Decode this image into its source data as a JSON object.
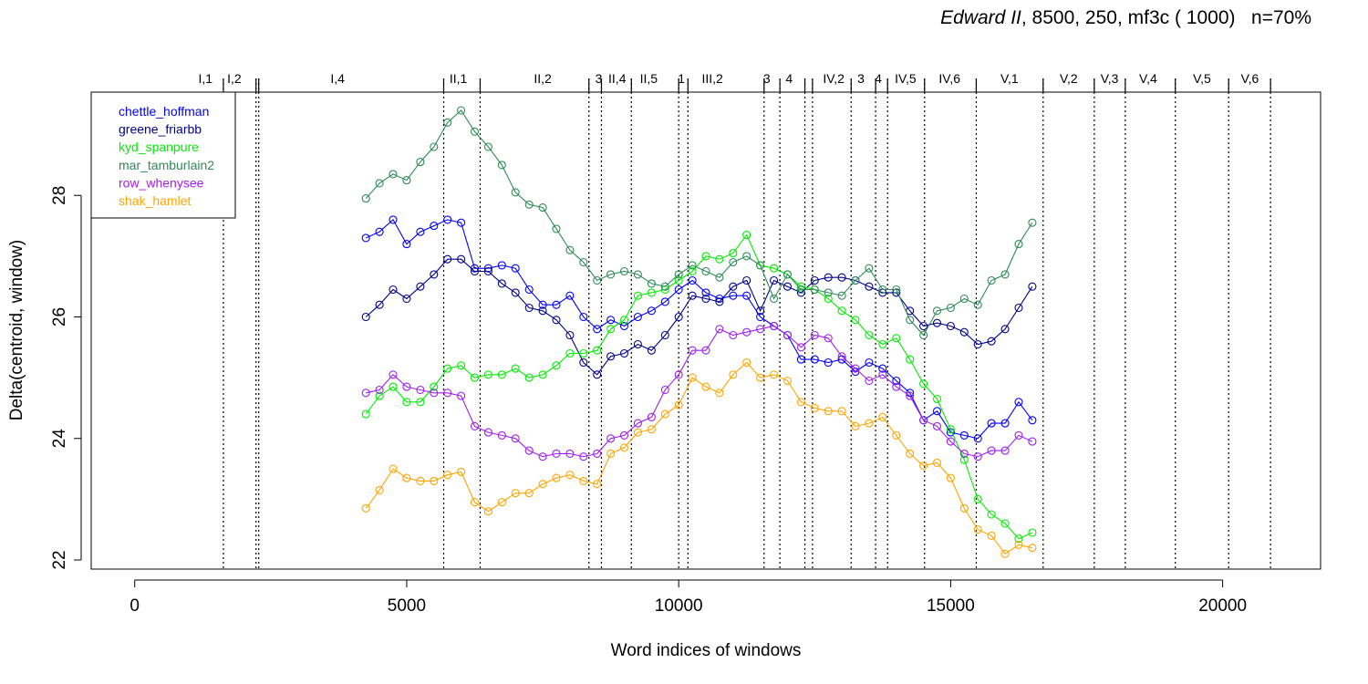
{
  "chart_data": {
    "type": "line",
    "title_italic": "Edward II",
    "title_rest": ", 8500, 250, mf3c ( 1000)   n=70%",
    "xlabel": "Word indices of windows",
    "ylabel": "Delta(centroid, window)",
    "xlim": [
      -800,
      21800
    ],
    "ylim": [
      21.85,
      29.7
    ],
    "x_ticks": [
      0,
      5000,
      10000,
      15000,
      20000
    ],
    "x_tick_labels": [
      "0",
      "5000",
      "10000",
      "15000",
      "20000"
    ],
    "y_ticks": [
      22,
      24,
      26,
      28
    ],
    "y_tick_labels": [
      "22",
      "24",
      "26",
      "28"
    ],
    "grid": false,
    "legend_position": "top-left",
    "scene_boundaries": [
      1630,
      2230,
      2280,
      5680,
      6350,
      8350,
      8580,
      9130,
      10000,
      10170,
      11570,
      11860,
      12320,
      12460,
      13170,
      13620,
      13840,
      14520,
      15470,
      16700,
      17640,
      18210,
      19130,
      20110,
      20880
    ],
    "scenes": [
      {
        "label": "I,1",
        "x": 1300
      },
      {
        "label": "I,2",
        "x": 1830
      },
      {
        "label": "I,4",
        "x": 3730
      },
      {
        "label": "II,1",
        "x": 5950
      },
      {
        "label": "II,2",
        "x": 7500
      },
      {
        "label": "3",
        "x": 8530
      },
      {
        "label": "II,4",
        "x": 8870
      },
      {
        "label": "II,5",
        "x": 9450
      },
      {
        "label": "1",
        "x": 10050
      },
      {
        "label": "III,2",
        "x": 10620
      },
      {
        "label": "3",
        "x": 11620
      },
      {
        "label": "4",
        "x": 12030
      },
      {
        "label": "IV,2",
        "x": 12850
      },
      {
        "label": "3",
        "x": 13350
      },
      {
        "label": "4",
        "x": 13670
      },
      {
        "label": "IV,5",
        "x": 14170
      },
      {
        "label": "IV,6",
        "x": 14980
      },
      {
        "label": "V,1",
        "x": 16080
      },
      {
        "label": "V,2",
        "x": 17170
      },
      {
        "label": "V,3",
        "x": 17920
      },
      {
        "label": "V,4",
        "x": 18630
      },
      {
        "label": "V,5",
        "x": 19620
      },
      {
        "label": "V,6",
        "x": 20500
      }
    ],
    "x": [
      4250,
      4500,
      4750,
      5000,
      5250,
      5500,
      5750,
      6000,
      6250,
      6500,
      6750,
      7000,
      7250,
      7500,
      7750,
      8000,
      8250,
      8500,
      8750,
      9000,
      9250,
      9500,
      9750,
      10000,
      10250,
      10500,
      10750,
      11000,
      11250,
      11500,
      11750,
      12000,
      12250,
      12500,
      12750,
      13000,
      13250,
      13500,
      13750,
      14000,
      14250,
      14500,
      14750,
      15000,
      15250,
      15500,
      15750,
      16000,
      16250,
      16500
    ],
    "series": [
      {
        "name": "chettle_hoffman",
        "color": "#0000ff",
        "values": [
          27.3,
          27.4,
          27.6,
          27.2,
          27.4,
          27.5,
          27.6,
          27.55,
          26.8,
          26.8,
          26.85,
          26.8,
          26.45,
          26.2,
          26.2,
          26.35,
          26.0,
          25.8,
          25.95,
          25.85,
          26.0,
          26.1,
          26.25,
          26.45,
          26.6,
          26.4,
          26.3,
          26.35,
          26.35,
          26.0,
          25.85,
          25.7,
          25.3,
          25.3,
          25.25,
          25.3,
          25.1,
          25.25,
          25.15,
          24.95,
          24.75,
          24.3,
          24.45,
          24.1,
          24.05,
          24.0,
          24.25,
          24.25,
          24.6,
          24.3
        ]
      },
      {
        "name": "greene_friarbb",
        "color": "#00008b",
        "values": [
          26.0,
          26.2,
          26.45,
          26.3,
          26.5,
          26.7,
          26.95,
          26.95,
          26.75,
          26.75,
          26.55,
          26.4,
          26.15,
          26.1,
          25.95,
          25.7,
          25.25,
          25.05,
          25.35,
          25.4,
          25.55,
          25.45,
          25.7,
          26.0,
          26.35,
          26.3,
          26.25,
          26.5,
          26.6,
          26.1,
          26.6,
          26.5,
          26.4,
          26.6,
          26.65,
          26.65,
          26.6,
          26.5,
          26.4,
          26.4,
          26.1,
          25.85,
          25.9,
          25.85,
          25.75,
          25.55,
          25.6,
          25.8,
          26.15,
          26.5
        ]
      },
      {
        "name": "kyd_spanpure",
        "color": "#00ee00",
        "values": [
          24.4,
          24.7,
          24.85,
          24.6,
          24.6,
          24.85,
          25.15,
          25.2,
          25.0,
          25.05,
          25.05,
          25.15,
          25.0,
          25.05,
          25.2,
          25.4,
          25.4,
          25.45,
          25.8,
          25.95,
          26.35,
          26.4,
          26.45,
          26.6,
          26.75,
          27.0,
          26.95,
          27.05,
          27.35,
          26.85,
          26.8,
          26.7,
          26.5,
          26.45,
          26.3,
          26.1,
          25.95,
          25.7,
          25.55,
          25.65,
          25.3,
          24.9,
          24.65,
          24.15,
          23.65,
          23.0,
          22.75,
          22.6,
          22.35,
          22.45
        ]
      },
      {
        "name": "mar_tamburlain2",
        "color": "#2e8b57",
        "values": [
          27.95,
          28.2,
          28.35,
          28.25,
          28.55,
          28.8,
          29.2,
          29.4,
          29.05,
          28.8,
          28.5,
          28.05,
          27.85,
          27.8,
          27.45,
          27.1,
          26.9,
          26.6,
          26.7,
          26.75,
          26.7,
          26.55,
          26.5,
          26.7,
          26.85,
          26.75,
          26.65,
          26.9,
          27.0,
          26.85,
          26.3,
          26.7,
          26.45,
          26.45,
          26.4,
          26.35,
          26.6,
          26.8,
          26.45,
          26.45,
          25.95,
          25.7,
          26.1,
          26.15,
          26.3,
          26.2,
          26.6,
          26.7,
          27.2,
          27.55
        ]
      },
      {
        "name": "row_whenysee",
        "color": "#a020f0",
        "values": [
          24.75,
          24.8,
          25.05,
          24.85,
          24.8,
          24.75,
          24.75,
          24.7,
          24.2,
          24.1,
          24.05,
          24.0,
          23.8,
          23.7,
          23.75,
          23.75,
          23.7,
          23.75,
          24.0,
          24.05,
          24.25,
          24.35,
          24.8,
          25.05,
          25.45,
          25.45,
          25.8,
          25.7,
          25.75,
          25.8,
          25.85,
          25.7,
          25.5,
          25.7,
          25.65,
          25.35,
          25.15,
          24.95,
          25.05,
          24.85,
          24.7,
          24.3,
          24.2,
          23.95,
          23.75,
          23.7,
          23.8,
          23.8,
          24.05,
          23.95
        ]
      },
      {
        "name": "shak_hamlet",
        "color": "#ffa500",
        "values": [
          22.85,
          23.15,
          23.5,
          23.35,
          23.3,
          23.3,
          23.4,
          23.45,
          22.95,
          22.8,
          22.95,
          23.1,
          23.1,
          23.25,
          23.35,
          23.4,
          23.3,
          23.25,
          23.75,
          23.85,
          24.1,
          24.15,
          24.4,
          24.55,
          25.0,
          24.85,
          24.75,
          25.05,
          25.25,
          25.0,
          25.05,
          24.95,
          24.6,
          24.5,
          24.45,
          24.45,
          24.2,
          24.25,
          24.35,
          24.05,
          23.75,
          23.55,
          23.6,
          23.35,
          22.85,
          22.5,
          22.4,
          22.1,
          22.25,
          22.2
        ]
      }
    ]
  }
}
